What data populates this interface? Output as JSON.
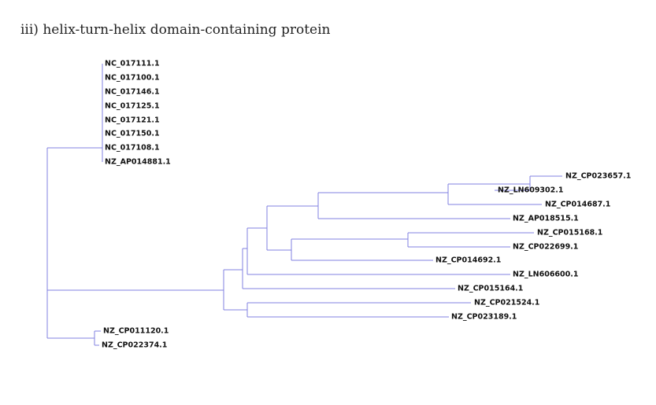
{
  "caption": "iii) helix-turn-helix domain-containing protein",
  "colors": {
    "branch": "#8080e0",
    "label": "#111111"
  },
  "tree": {
    "leaves": [
      "NC_017111.1",
      "NC_017100.1",
      "NC_017146.1",
      "NC_017125.1",
      "NC_017121.1",
      "NC_017150.1",
      "NC_017108.1",
      "NZ_AP014881.1",
      "NZ_CP023657.1",
      "NZ_LN609302.1",
      "NZ_CP014687.1",
      "NZ_AP018515.1",
      "NZ_CP015168.1",
      "NZ_CP022699.1",
      "NZ_CP014692.1",
      "NZ_LN606600.1",
      "NZ_CP015164.1",
      "NZ_CP021524.1",
      "NZ_CP023189.1",
      "NZ_CP011120.1",
      "NZ_CP022374.1"
    ]
  }
}
